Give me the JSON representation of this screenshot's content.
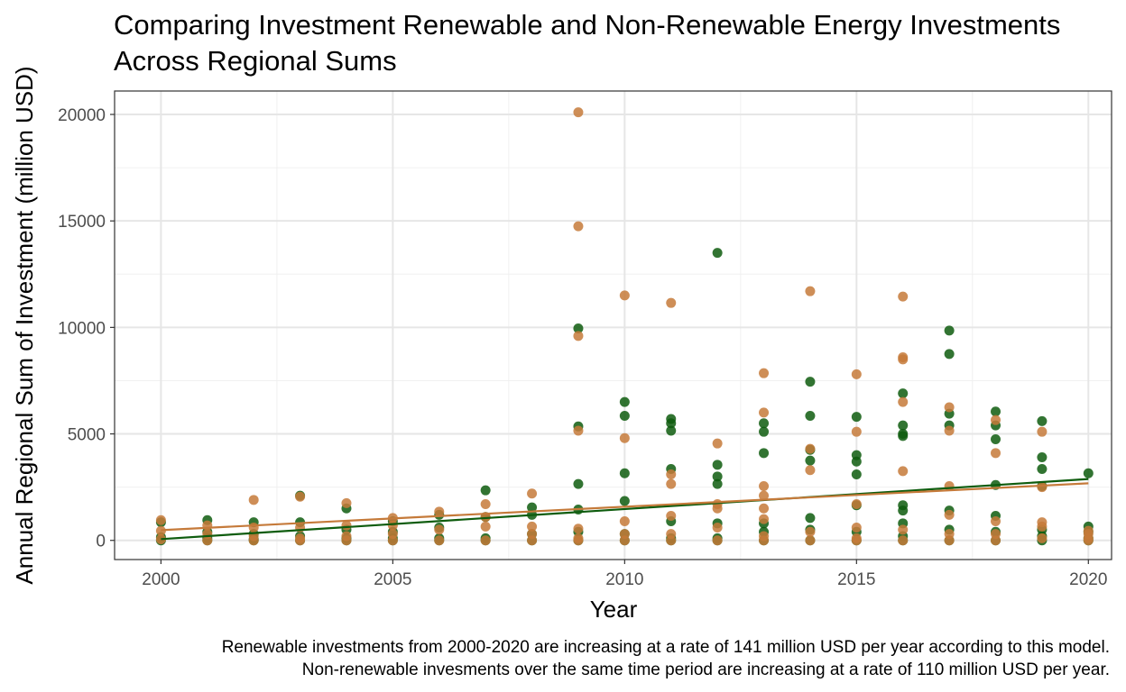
{
  "chart_data": {
    "type": "scatter",
    "title_lines": [
      "Comparing Investment Renewable and Non-Renewable Energy Investments",
      "Across Regional Sums"
    ],
    "xlabel": "Year",
    "ylabel": "Annual Regional Sum of Investment (million USD)",
    "xlim": [
      1999,
      2020.5
    ],
    "ylim": [
      -900,
      21100
    ],
    "x_ticks": [
      2000,
      2005,
      2010,
      2015,
      2020
    ],
    "y_ticks": [
      0,
      5000,
      10000,
      15000,
      20000
    ],
    "grid": true,
    "caption_lines": [
      "Renewable investments from 2000-2020 are increasing at a rate of 141 million USD per year according to this model.",
      "Non-renewable invesments over the same time period are increasing at a rate of 110 million USD per year."
    ],
    "series": [
      {
        "name": "Renewable",
        "color": "#0e5c0e",
        "trend": {
          "x": [
            2000,
            2020
          ],
          "y": [
            60,
            2880
          ]
        },
        "points": [
          [
            2000,
            850
          ],
          [
            2000,
            150
          ],
          [
            2000,
            0
          ],
          [
            2001,
            950
          ],
          [
            2001,
            400
          ],
          [
            2001,
            100
          ],
          [
            2001,
            0
          ],
          [
            2002,
            850
          ],
          [
            2002,
            300
          ],
          [
            2002,
            50
          ],
          [
            2002,
            0
          ],
          [
            2003,
            2100
          ],
          [
            2003,
            850
          ],
          [
            2003,
            200
          ],
          [
            2003,
            0
          ],
          [
            2004,
            1500
          ],
          [
            2004,
            500
          ],
          [
            2004,
            100
          ],
          [
            2004,
            0
          ],
          [
            2005,
            900
          ],
          [
            2005,
            400
          ],
          [
            2005,
            100
          ],
          [
            2005,
            0
          ],
          [
            2006,
            1200
          ],
          [
            2006,
            600
          ],
          [
            2006,
            100
          ],
          [
            2006,
            0
          ],
          [
            2007,
            2350
          ],
          [
            2007,
            1100
          ],
          [
            2007,
            100
          ],
          [
            2007,
            0
          ],
          [
            2008,
            1550
          ],
          [
            2008,
            1200
          ],
          [
            2008,
            300
          ],
          [
            2008,
            0
          ],
          [
            2009,
            9950
          ],
          [
            2009,
            5350
          ],
          [
            2009,
            2650
          ],
          [
            2009,
            1450
          ],
          [
            2009,
            400
          ],
          [
            2009,
            0
          ],
          [
            2010,
            6500
          ],
          [
            2010,
            5850
          ],
          [
            2010,
            3150
          ],
          [
            2010,
            1850
          ],
          [
            2010,
            300
          ],
          [
            2010,
            0
          ],
          [
            2011,
            5700
          ],
          [
            2011,
            5500
          ],
          [
            2011,
            5150
          ],
          [
            2011,
            3350
          ],
          [
            2011,
            900
          ],
          [
            2011,
            100
          ],
          [
            2011,
            0
          ],
          [
            2012,
            13500
          ],
          [
            2012,
            3550
          ],
          [
            2012,
            3000
          ],
          [
            2012,
            2650
          ],
          [
            2012,
            800
          ],
          [
            2012,
            100
          ],
          [
            2012,
            0
          ],
          [
            2013,
            5500
          ],
          [
            2013,
            5100
          ],
          [
            2013,
            4100
          ],
          [
            2013,
            800
          ],
          [
            2013,
            400
          ],
          [
            2013,
            0
          ],
          [
            2014,
            7450
          ],
          [
            2014,
            5850
          ],
          [
            2014,
            4250
          ],
          [
            2014,
            3750
          ],
          [
            2014,
            1050
          ],
          [
            2014,
            500
          ],
          [
            2014,
            0
          ],
          [
            2015,
            5800
          ],
          [
            2015,
            4000
          ],
          [
            2015,
            3700
          ],
          [
            2015,
            3100
          ],
          [
            2015,
            1650
          ],
          [
            2015,
            400
          ],
          [
            2015,
            0
          ],
          [
            2016,
            6900
          ],
          [
            2016,
            5400
          ],
          [
            2016,
            5000
          ],
          [
            2016,
            4900
          ],
          [
            2016,
            1650
          ],
          [
            2016,
            1400
          ],
          [
            2016,
            800
          ],
          [
            2016,
            200
          ],
          [
            2016,
            0
          ],
          [
            2017,
            9850
          ],
          [
            2017,
            8750
          ],
          [
            2017,
            5950
          ],
          [
            2017,
            5400
          ],
          [
            2017,
            1400
          ],
          [
            2017,
            500
          ],
          [
            2017,
            0
          ],
          [
            2018,
            6050
          ],
          [
            2018,
            5400
          ],
          [
            2018,
            4750
          ],
          [
            2018,
            2600
          ],
          [
            2018,
            1150
          ],
          [
            2018,
            400
          ],
          [
            2018,
            0
          ],
          [
            2019,
            5600
          ],
          [
            2019,
            3900
          ],
          [
            2019,
            3350
          ],
          [
            2019,
            2550
          ],
          [
            2019,
            500
          ],
          [
            2019,
            200
          ],
          [
            2019,
            0
          ],
          [
            2020,
            3150
          ],
          [
            2020,
            650
          ],
          [
            2020,
            400
          ],
          [
            2020,
            100
          ],
          [
            2020,
            0
          ]
        ]
      },
      {
        "name": "Non-Renewable",
        "color": "#c57a3a",
        "trend": {
          "x": [
            2000,
            2020
          ],
          "y": [
            480,
            2680
          ]
        },
        "points": [
          [
            2000,
            950
          ],
          [
            2000,
            450
          ],
          [
            2000,
            50
          ],
          [
            2001,
            700
          ],
          [
            2001,
            300
          ],
          [
            2001,
            0
          ],
          [
            2002,
            1900
          ],
          [
            2002,
            600
          ],
          [
            2002,
            200
          ],
          [
            2002,
            0
          ],
          [
            2003,
            2050
          ],
          [
            2003,
            600
          ],
          [
            2003,
            100
          ],
          [
            2003,
            0
          ],
          [
            2004,
            1750
          ],
          [
            2004,
            700
          ],
          [
            2004,
            200
          ],
          [
            2004,
            0
          ],
          [
            2005,
            1050
          ],
          [
            2005,
            700
          ],
          [
            2005,
            300
          ],
          [
            2005,
            0
          ],
          [
            2006,
            1350
          ],
          [
            2006,
            500
          ],
          [
            2006,
            0
          ],
          [
            2007,
            1700
          ],
          [
            2007,
            1100
          ],
          [
            2007,
            650
          ],
          [
            2007,
            0
          ],
          [
            2008,
            2200
          ],
          [
            2008,
            650
          ],
          [
            2008,
            300
          ],
          [
            2008,
            0
          ],
          [
            2009,
            20100
          ],
          [
            2009,
            14750
          ],
          [
            2009,
            9600
          ],
          [
            2009,
            5150
          ],
          [
            2009,
            550
          ],
          [
            2009,
            100
          ],
          [
            2009,
            0
          ],
          [
            2010,
            11500
          ],
          [
            2010,
            4800
          ],
          [
            2010,
            900
          ],
          [
            2010,
            300
          ],
          [
            2010,
            0
          ],
          [
            2011,
            11150
          ],
          [
            2011,
            3100
          ],
          [
            2011,
            2650
          ],
          [
            2011,
            1150
          ],
          [
            2011,
            300
          ],
          [
            2011,
            0
          ],
          [
            2012,
            4550
          ],
          [
            2012,
            1700
          ],
          [
            2012,
            1500
          ],
          [
            2012,
            600
          ],
          [
            2012,
            0
          ],
          [
            2013,
            7850
          ],
          [
            2013,
            6000
          ],
          [
            2013,
            2550
          ],
          [
            2013,
            2100
          ],
          [
            2013,
            1500
          ],
          [
            2013,
            1000
          ],
          [
            2013,
            200
          ],
          [
            2013,
            0
          ],
          [
            2014,
            11700
          ],
          [
            2014,
            4300
          ],
          [
            2014,
            3300
          ],
          [
            2014,
            400
          ],
          [
            2014,
            0
          ],
          [
            2015,
            7800
          ],
          [
            2015,
            5100
          ],
          [
            2015,
            1700
          ],
          [
            2015,
            600
          ],
          [
            2015,
            100
          ],
          [
            2015,
            0
          ],
          [
            2016,
            11450
          ],
          [
            2016,
            8600
          ],
          [
            2016,
            8500
          ],
          [
            2016,
            6500
          ],
          [
            2016,
            3250
          ],
          [
            2016,
            500
          ],
          [
            2016,
            0
          ],
          [
            2017,
            6250
          ],
          [
            2017,
            5150
          ],
          [
            2017,
            2550
          ],
          [
            2017,
            1200
          ],
          [
            2017,
            300
          ],
          [
            2017,
            0
          ],
          [
            2018,
            5650
          ],
          [
            2018,
            4100
          ],
          [
            2018,
            900
          ],
          [
            2018,
            300
          ],
          [
            2018,
            0
          ],
          [
            2019,
            5100
          ],
          [
            2019,
            2500
          ],
          [
            2019,
            850
          ],
          [
            2019,
            650
          ],
          [
            2019,
            100
          ],
          [
            2020,
            450
          ],
          [
            2020,
            300
          ],
          [
            2020,
            100
          ],
          [
            2020,
            0
          ]
        ]
      }
    ]
  }
}
